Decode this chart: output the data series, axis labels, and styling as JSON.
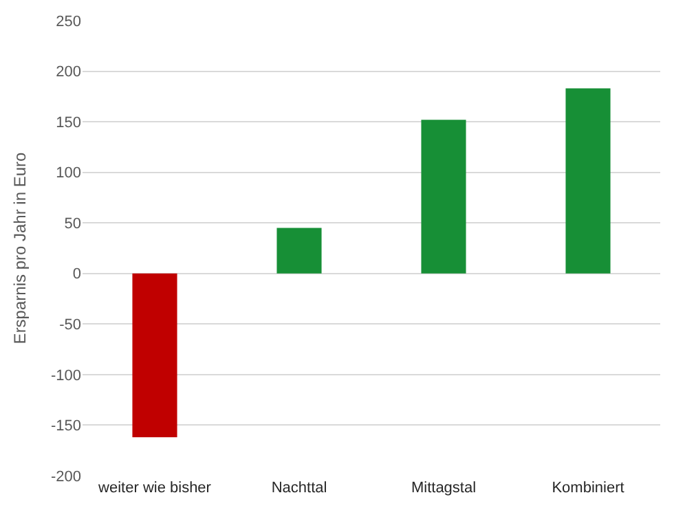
{
  "chart_data": {
    "type": "bar",
    "ylabel": "Ersparnis pro Jahr in Euro",
    "categories": [
      "weiter wie bisher",
      "Nachttal",
      "Mittagstal",
      "Kombiniert"
    ],
    "values": [
      -162,
      45,
      152,
      183
    ],
    "colors": [
      "#c00000",
      "#178f36",
      "#178f36",
      "#178f36"
    ],
    "ylim": [
      -200,
      250
    ],
    "yticks": [
      -200,
      -150,
      -100,
      -50,
      0,
      50,
      100,
      150,
      200,
      250
    ],
    "grid": "y",
    "legend": false
  }
}
